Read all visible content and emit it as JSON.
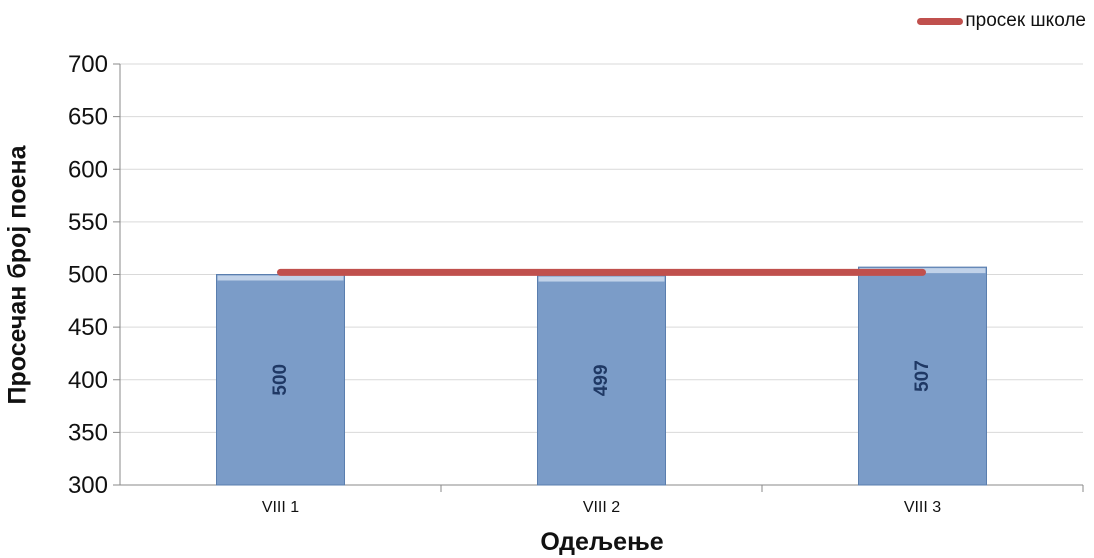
{
  "chart_data": {
    "type": "bar",
    "xlabel": "Одељење",
    "ylabel": "Просечан број поена",
    "categories": [
      "VIII 1",
      "VIII 2",
      "VIII 3"
    ],
    "series": [
      {
        "values": [
          500,
          499,
          507
        ]
      }
    ],
    "reference_line": {
      "name": "просек школе",
      "value": 502
    },
    "ylim": [
      300,
      700
    ],
    "yticks": [
      300,
      350,
      400,
      450,
      500,
      550,
      600,
      650,
      700
    ],
    "grid": true,
    "legend_position": "top-right",
    "colors": {
      "bar": "#7b9cc8",
      "bar_edge": "#5a7eae",
      "line": "#c0504d",
      "label": "#1f3864"
    }
  }
}
